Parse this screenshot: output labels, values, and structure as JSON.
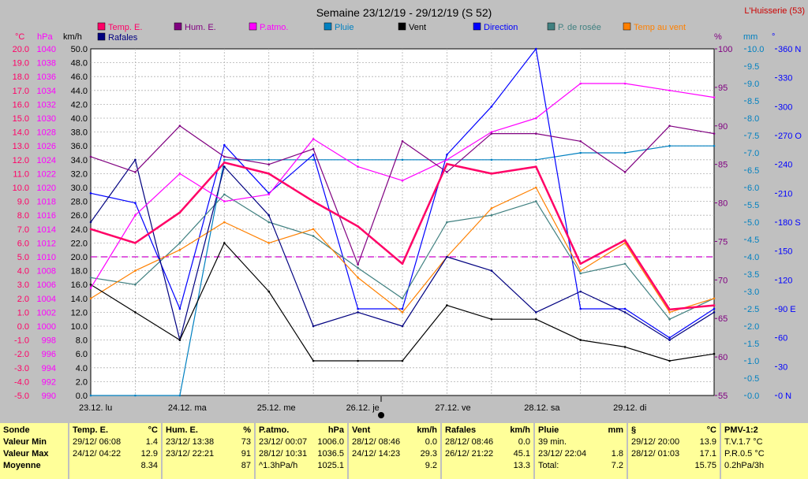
{
  "title": "Semaine 23/12/19 - 29/12/19 (S 52)",
  "station": "L'Huisserie (53)",
  "legend": [
    {
      "name": "Temp. E.",
      "color": "#ff0066"
    },
    {
      "name": "Hum. E.",
      "color": "#800080"
    },
    {
      "name": "P.atmo.",
      "color": "#ff00ff"
    },
    {
      "name": "Pluie",
      "color": "#0080c0"
    },
    {
      "name": "Vent",
      "color": "#000000"
    },
    {
      "name": "Direction",
      "color": "#0000ff"
    },
    {
      "name": "P. de rosée",
      "color": "#408080"
    },
    {
      "name": "Temp au vent",
      "color": "#ff8000"
    },
    {
      "name": "Rafales",
      "color": "#000080"
    }
  ],
  "axes": {
    "temp": {
      "unit": "°C",
      "min": -5,
      "max": 20,
      "ticks": [
        "20.0",
        "19.0",
        "18.0",
        "17.0",
        "16.0",
        "15.0",
        "14.0",
        "13.0",
        "12.0",
        "11.0",
        "10.0",
        "9.0",
        "8.0",
        "7.0",
        "6.0",
        "5.0",
        "4.0",
        "3.0",
        "2.0",
        "1.0",
        "0.0",
        "-1.0",
        "-2.0",
        "-3.0",
        "-4.0",
        "-5.0"
      ],
      "color": "#ff0066"
    },
    "pressure": {
      "unit": "hPa",
      "min": 990,
      "max": 1040,
      "ticks": [
        "1040",
        "1038",
        "1036",
        "1034",
        "1032",
        "1030",
        "1028",
        "1026",
        "1024",
        "1022",
        "1020",
        "1018",
        "1016",
        "1014",
        "1012",
        "1010",
        "1008",
        "1006",
        "1004",
        "1002",
        "1000",
        "998",
        "996",
        "994",
        "992",
        "990"
      ],
      "color": "#ff00ff"
    },
    "wind": {
      "unit": "km/h",
      "min": 0,
      "max": 50,
      "ticks": [
        "50.0",
        "48.0",
        "46.0",
        "44.0",
        "42.0",
        "40.0",
        "38.0",
        "36.0",
        "34.0",
        "32.0",
        "30.0",
        "28.0",
        "26.0",
        "24.0",
        "22.0",
        "20.0",
        "18.0",
        "16.0",
        "14.0",
        "12.0",
        "10.0",
        "8.0",
        "6.0",
        "4.0",
        "2.0",
        "0.0"
      ],
      "color": "#000000"
    },
    "humidity": {
      "unit": "%",
      "min": 55,
      "max": 100,
      "ticks": [
        "100",
        "95",
        "90",
        "85",
        "80",
        "75",
        "70",
        "65",
        "60",
        "55"
      ],
      "color": "#800080"
    },
    "rain": {
      "unit": "mm",
      "min": 0,
      "max": 10,
      "ticks": [
        "10.0",
        "9.5",
        "9.0",
        "8.5",
        "8.0",
        "7.5",
        "7.0",
        "6.5",
        "6.0",
        "5.5",
        "5.0",
        "4.5",
        "4.0",
        "3.5",
        "3.0",
        "2.5",
        "2.0",
        "1.5",
        "1.0",
        "0.5",
        "0.0"
      ],
      "color": "#0080c0"
    },
    "direction": {
      "unit": "°",
      "min": 0,
      "max": 360,
      "ticks": [
        "360 N",
        "330",
        "300",
        "270 O",
        "240",
        "210",
        "180 S",
        "150",
        "120",
        "90 E",
        "60",
        "30",
        "0 N"
      ],
      "color": "#0000ff"
    }
  },
  "day_labels": [
    "23.12. lu",
    "24.12. ma",
    "25.12. me",
    "26.12. je",
    "27.12. ve",
    "28.12. sa",
    "29.12. di"
  ],
  "chart_data": {
    "type": "line",
    "x": [
      "23/12 00h",
      "23/12 12h",
      "24/12 00h",
      "24/12 12h",
      "25/12 00h",
      "25/12 12h",
      "26/12 00h",
      "26/12 12h",
      "27/12 00h",
      "27/12 12h",
      "28/12 00h",
      "28/12 12h",
      "29/12 00h",
      "29/12 12h",
      "30/12 00h"
    ],
    "series": [
      {
        "name": "Temp. E.",
        "axis": "temp",
        "color": "#ff0066",
        "values": [
          7.0,
          6.0,
          8.2,
          11.8,
          11.0,
          9.0,
          7.2,
          4.5,
          11.7,
          11.0,
          11.5,
          4.5,
          6.2,
          1.2,
          1.5
        ]
      },
      {
        "name": "Hum. E.",
        "axis": "humidity",
        "color": "#800080",
        "values": [
          86,
          84,
          90,
          86,
          85,
          87,
          72,
          88,
          84,
          89,
          89,
          88,
          84,
          90,
          89
        ]
      },
      {
        "name": "P.atmo.",
        "axis": "pressure",
        "color": "#ff00ff",
        "values": [
          1005.5,
          1016,
          1022,
          1018,
          1019,
          1027,
          1023,
          1021,
          1024,
          1028,
          1030,
          1035,
          1035,
          1034,
          1033
        ]
      },
      {
        "name": "Pluie",
        "axis": "rain",
        "color": "#0080c0",
        "values": [
          0.0,
          0.0,
          0.0,
          6.8,
          6.8,
          6.8,
          6.8,
          6.8,
          6.8,
          6.8,
          6.8,
          7.0,
          7.0,
          7.2,
          7.2
        ]
      },
      {
        "name": "Vent",
        "axis": "wind",
        "color": "#000000",
        "values": [
          16,
          12,
          8,
          22,
          15,
          5,
          5,
          5,
          13,
          11,
          11,
          8,
          7,
          5,
          6
        ]
      },
      {
        "name": "Direction",
        "axis": "direction",
        "color": "#0000ff",
        "values": [
          210,
          200,
          90,
          260,
          210,
          250,
          90,
          90,
          250,
          300,
          360,
          90,
          90,
          60,
          90
        ]
      },
      {
        "name": "P. de rosée",
        "axis": "temp",
        "color": "#408080",
        "values": [
          3.5,
          3.0,
          6.0,
          9.5,
          7.5,
          6.5,
          4.2,
          2.0,
          7.5,
          8.0,
          9.0,
          3.8,
          4.5,
          0.5,
          2.0
        ]
      },
      {
        "name": "Temp au vent",
        "axis": "temp",
        "color": "#ff8000",
        "values": [
          2.0,
          4.0,
          5.5,
          7.5,
          6.0,
          7.0,
          3.5,
          1.0,
          5.0,
          8.5,
          10.0,
          4.0,
          6.0,
          1.0,
          2.0
        ]
      },
      {
        "name": "Rafales",
        "axis": "wind",
        "color": "#000080",
        "values": [
          25,
          34,
          8,
          33,
          26,
          10,
          12,
          10,
          20,
          18,
          12,
          15,
          12,
          8,
          12
        ]
      }
    ],
    "reference_lines": [
      {
        "axis": "temp",
        "value": 5.0,
        "color": "#cc00cc",
        "style": "dashed"
      }
    ],
    "grid": true
  },
  "summary": [
    {
      "header": "Sonde",
      "unit": "",
      "rows": [
        [
          "Valeur Min",
          ""
        ],
        [
          "Valeur Max",
          ""
        ],
        [
          "Moyenne",
          ""
        ]
      ]
    },
    {
      "header": "Temp. E.",
      "unit": "°C",
      "rows": [
        [
          "29/12/  06:08",
          "1.4"
        ],
        [
          "24/12/  04:22",
          "12.9"
        ],
        [
          "",
          "8.34"
        ]
      ]
    },
    {
      "header": "Hum. E.",
      "unit": "%",
      "rows": [
        [
          "23/12/  13:38",
          "73"
        ],
        [
          "23/12/  22:21",
          "91"
        ],
        [
          "",
          "87"
        ]
      ]
    },
    {
      "header": "P.atmo.",
      "unit": "hPa",
      "rows": [
        [
          "23/12/  00:07",
          "1006.0"
        ],
        [
          "28/12/  10:31",
          "1036.5"
        ],
        [
          "^1.3hPa/h",
          "1025.1"
        ]
      ]
    },
    {
      "header": "Vent",
      "unit": "km/h",
      "rows": [
        [
          "28/12/  08:46",
          "0.0"
        ],
        [
          "24/12/  14:23",
          "29.3"
        ],
        [
          "",
          "9.2"
        ]
      ]
    },
    {
      "header": "Rafales",
      "unit": "km/h",
      "rows": [
        [
          "28/12/  08:46",
          "0.0"
        ],
        [
          "26/12/  21:22",
          "45.1"
        ],
        [
          "",
          "13.3"
        ]
      ]
    },
    {
      "header": "Pluie",
      "unit": "mm",
      "rows": [
        [
          "39 min.",
          ""
        ],
        [
          "23/12/  22:04",
          "1.8"
        ],
        [
          "Total:",
          "7.2"
        ]
      ]
    },
    {
      "header": "§",
      "unit": "°C",
      "rows": [
        [
          "29/12/  20:00",
          "13.9"
        ],
        [
          "28/12/  01:03",
          "17.1"
        ],
        [
          "",
          "15.75"
        ]
      ]
    },
    {
      "header": "PMV-1:2",
      "unit": "",
      "rows": [
        [
          "T.V.1.7 °C",
          ""
        ],
        [
          "P.R.0.5 °C",
          ""
        ],
        [
          "0.2hPa/3h",
          ""
        ]
      ]
    }
  ]
}
